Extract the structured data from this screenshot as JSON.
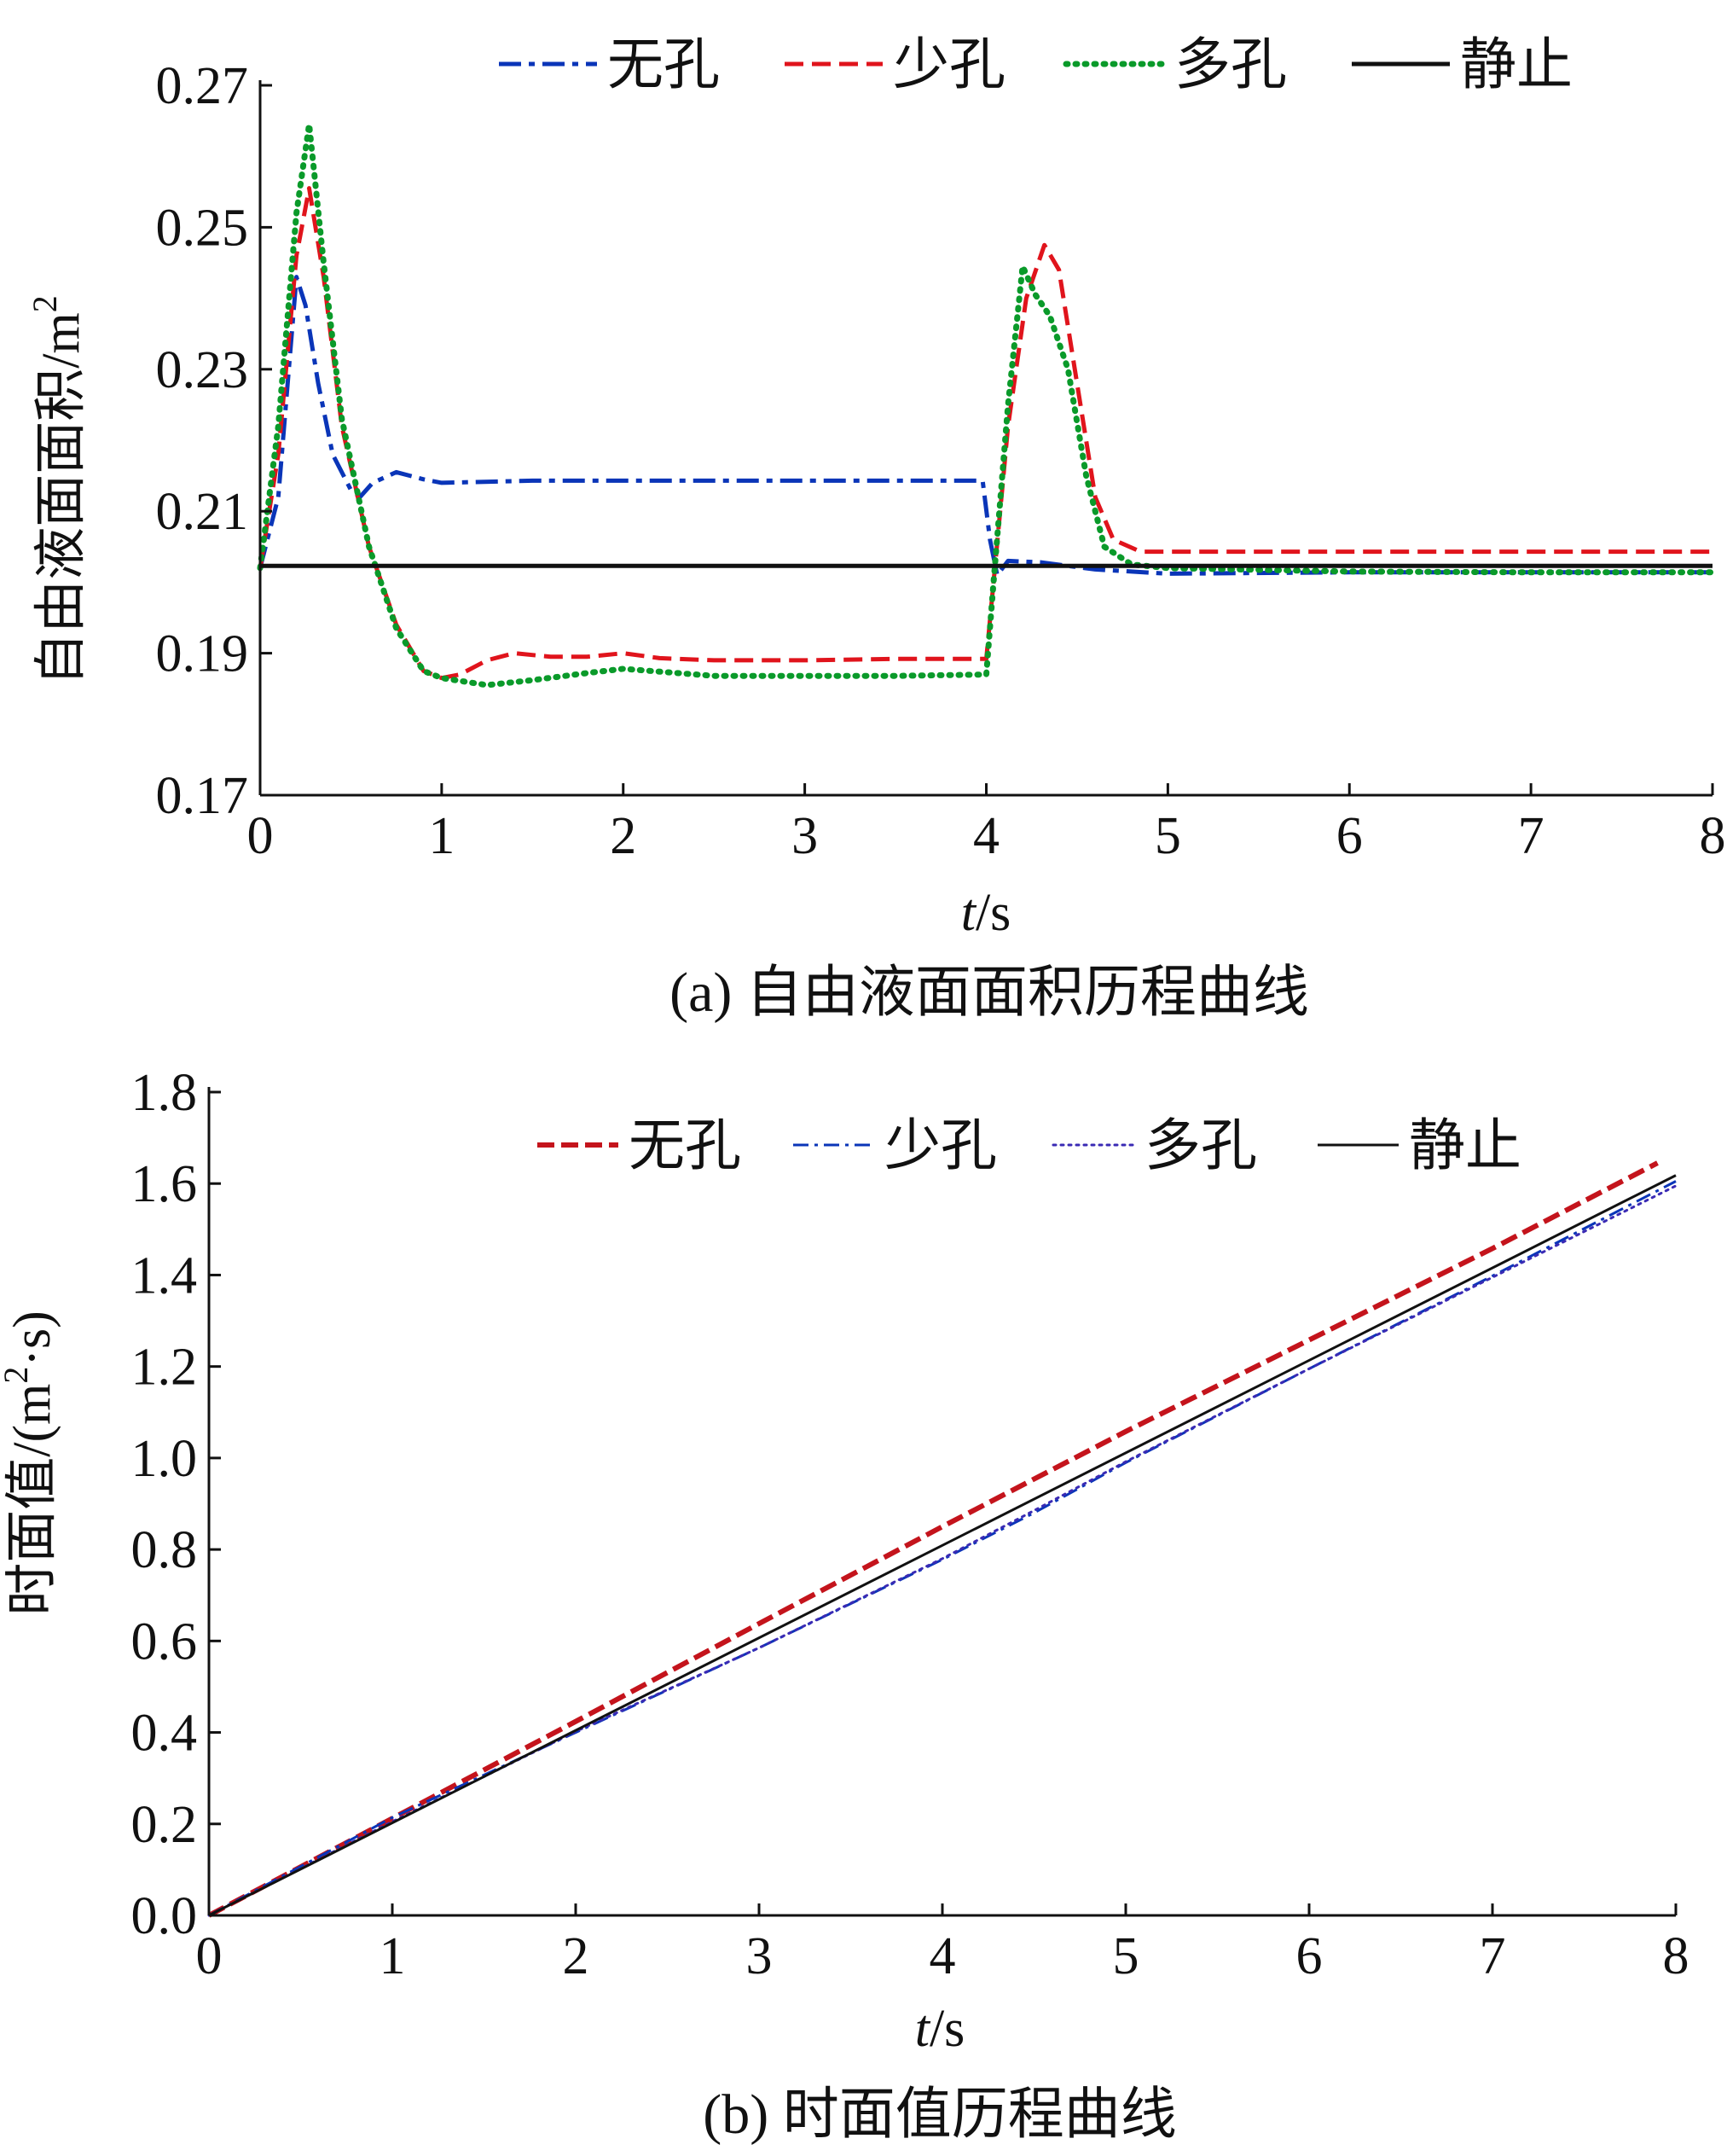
{
  "figure": {
    "caption_a": "(a) 自由液面面积历程曲线",
    "caption_b": "(b) 时面值历程曲线"
  },
  "colors": {
    "blue": "#0a35b8",
    "red": "#e0141c",
    "green": "#0a9a2a",
    "black": "#111111",
    "dark_red": "#c4141c",
    "purple": "#3a2ab4"
  },
  "chart_data": [
    {
      "type": "line",
      "title": "",
      "xlabel": "t/s",
      "ylabel": "自由液面面积/m2",
      "xlim": [
        0,
        8
      ],
      "ylim": [
        0.17,
        0.27
      ],
      "xticks": [
        "0",
        "1",
        "2",
        "3",
        "4",
        "5",
        "6",
        "7",
        "8"
      ],
      "yticks": [
        "0.17",
        "0.19",
        "0.21",
        "0.23",
        "0.25",
        "0.27"
      ],
      "legend_position": "top",
      "series": [
        {
          "name": "无孔",
          "color": "#0a35b8",
          "style": "dashdot",
          "points": [
            [
              0,
              0.202
            ],
            [
              0.1,
              0.212
            ],
            [
              0.2,
              0.243
            ],
            [
              0.25,
              0.239
            ],
            [
              0.32,
              0.228
            ],
            [
              0.4,
              0.218
            ],
            [
              0.5,
              0.213
            ],
            [
              0.55,
              0.212
            ],
            [
              0.62,
              0.214
            ],
            [
              0.75,
              0.2155
            ],
            [
              0.9,
              0.2145
            ],
            [
              1.0,
              0.214
            ],
            [
              1.5,
              0.2143
            ],
            [
              2.0,
              0.2143
            ],
            [
              2.5,
              0.2143
            ],
            [
              3.0,
              0.2143
            ],
            [
              3.5,
              0.2143
            ],
            [
              3.98,
              0.2143
            ],
            [
              4.02,
              0.206
            ],
            [
              4.06,
              0.201
            ],
            [
              4.12,
              0.203
            ],
            [
              4.3,
              0.2028
            ],
            [
              4.6,
              0.2018
            ],
            [
              5.0,
              0.2012
            ],
            [
              6.0,
              0.2014
            ],
            [
              7.0,
              0.2014
            ],
            [
              8.0,
              0.2014
            ]
          ]
        },
        {
          "name": "少孔",
          "color": "#e0141c",
          "style": "dashed",
          "points": [
            [
              0,
              0.202
            ],
            [
              0.1,
              0.218
            ],
            [
              0.2,
              0.246
            ],
            [
              0.27,
              0.2555
            ],
            [
              0.35,
              0.243
            ],
            [
              0.45,
              0.222
            ],
            [
              0.6,
              0.205
            ],
            [
              0.75,
              0.194
            ],
            [
              0.9,
              0.1875
            ],
            [
              1.0,
              0.1865
            ],
            [
              1.1,
              0.187
            ],
            [
              1.25,
              0.189
            ],
            [
              1.4,
              0.19
            ],
            [
              1.6,
              0.1895
            ],
            [
              1.8,
              0.1895
            ],
            [
              2.0,
              0.19
            ],
            [
              2.2,
              0.1893
            ],
            [
              2.5,
              0.189
            ],
            [
              3.0,
              0.189
            ],
            [
              3.5,
              0.1892
            ],
            [
              4.0,
              0.1892
            ],
            [
              4.04,
              0.2
            ],
            [
              4.12,
              0.222
            ],
            [
              4.22,
              0.24
            ],
            [
              4.32,
              0.2475
            ],
            [
              4.4,
              0.244
            ],
            [
              4.5,
              0.228
            ],
            [
              4.6,
              0.212
            ],
            [
              4.7,
              0.206
            ],
            [
              4.85,
              0.2043
            ],
            [
              5.0,
              0.2043
            ],
            [
              6.0,
              0.2043
            ],
            [
              7.0,
              0.2043
            ],
            [
              8.0,
              0.2043
            ]
          ]
        },
        {
          "name": "多孔",
          "color": "#0a9a2a",
          "style": "dotted",
          "points": [
            [
              0,
              0.202
            ],
            [
              0.1,
              0.222
            ],
            [
              0.2,
              0.252
            ],
            [
              0.27,
              0.2645
            ],
            [
              0.35,
              0.245
            ],
            [
              0.45,
              0.223
            ],
            [
              0.6,
              0.205
            ],
            [
              0.75,
              0.1935
            ],
            [
              0.9,
              0.1875
            ],
            [
              1.0,
              0.1865
            ],
            [
              1.25,
              0.1855
            ],
            [
              1.5,
              0.1862
            ],
            [
              1.8,
              0.1872
            ],
            [
              2.0,
              0.1878
            ],
            [
              2.5,
              0.1868
            ],
            [
              3.0,
              0.1868
            ],
            [
              3.5,
              0.1868
            ],
            [
              4.0,
              0.187
            ],
            [
              4.04,
              0.2
            ],
            [
              4.12,
              0.225
            ],
            [
              4.2,
              0.2445
            ],
            [
              4.27,
              0.2405
            ],
            [
              4.35,
              0.2375
            ],
            [
              4.45,
              0.23
            ],
            [
              4.55,
              0.215
            ],
            [
              4.65,
              0.205
            ],
            [
              4.8,
              0.2025
            ],
            [
              5.0,
              0.202
            ],
            [
              6.0,
              0.2015
            ],
            [
              7.0,
              0.2014
            ],
            [
              8.0,
              0.2014
            ]
          ]
        },
        {
          "name": "静止",
          "color": "#111111",
          "style": "solid",
          "points": [
            [
              0,
              0.2023
            ],
            [
              8,
              0.2023
            ]
          ]
        }
      ]
    },
    {
      "type": "line",
      "title": "",
      "xlabel": "t/s",
      "ylabel": "时面值/(m2·s)",
      "xlim": [
        0,
        8
      ],
      "ylim": [
        0,
        1.8
      ],
      "xticks": [
        "0",
        "1",
        "2",
        "3",
        "4",
        "5",
        "6",
        "7",
        "8"
      ],
      "yticks": [
        "0.0",
        "0.2",
        "0.4",
        "0.6",
        "0.8",
        "1.0",
        "1.2",
        "1.4",
        "1.6",
        "1.8"
      ],
      "legend_position": "top",
      "series": [
        {
          "name": "无孔",
          "color": "#c4141c",
          "style": "dashed",
          "points": [
            [
              0,
              0
            ],
            [
              1,
              0.212
            ],
            [
              2,
              0.424
            ],
            [
              3,
              0.638
            ],
            [
              4,
              0.85
            ],
            [
              5,
              1.058
            ],
            [
              6,
              1.258
            ],
            [
              7,
              1.458
            ],
            [
              7.9,
              1.645
            ]
          ]
        },
        {
          "name": "少孔",
          "color": "#0a35b8",
          "style": "dashdot",
          "points": [
            [
              0,
              0
            ],
            [
              1,
              0.214
            ],
            [
              2,
              0.4
            ],
            [
              3,
              0.585
            ],
            [
              4,
              0.778
            ],
            [
              4.5,
              0.88
            ],
            [
              5,
              0.99
            ],
            [
              6,
              1.195
            ],
            [
              7,
              1.398
            ],
            [
              8,
              1.605
            ]
          ]
        },
        {
          "name": "多孔",
          "color": "#3a2ab4",
          "style": "dotted",
          "points": [
            [
              0,
              0
            ],
            [
              1,
              0.205
            ],
            [
              2,
              0.402
            ],
            [
              3,
              0.585
            ],
            [
              4,
              0.78
            ],
            [
              4.5,
              0.885
            ],
            [
              5,
              0.992
            ],
            [
              6,
              1.195
            ],
            [
              7,
              1.395
            ],
            [
              8,
              1.595
            ]
          ]
        },
        {
          "name": "静止",
          "color": "#111111",
          "style": "solid",
          "points": [
            [
              0,
              0
            ],
            [
              8,
              1.618
            ]
          ]
        }
      ]
    }
  ]
}
